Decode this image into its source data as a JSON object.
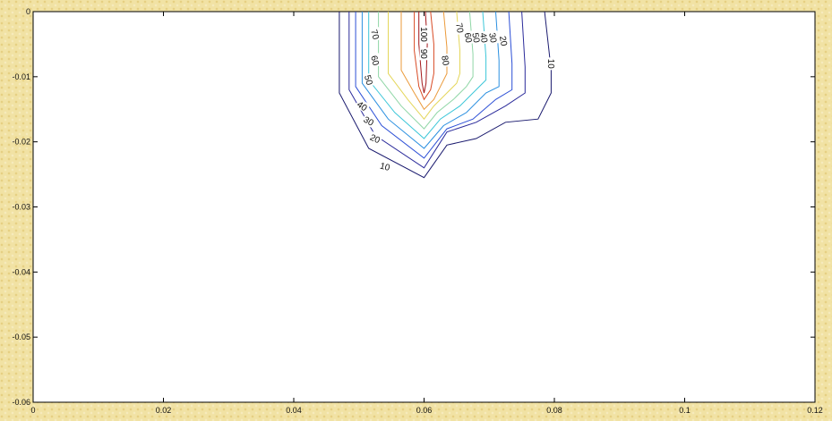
{
  "chart_data": {
    "type": "contour",
    "title": "",
    "xlabel": "",
    "ylabel": "",
    "xlim": [
      0,
      0.12
    ],
    "ylim": [
      -0.06,
      0
    ],
    "grid": false,
    "x_ticks": [
      {
        "value": 0,
        "label": "0"
      },
      {
        "value": 0.02,
        "label": "0.02"
      },
      {
        "value": 0.04,
        "label": "0.04"
      },
      {
        "value": 0.06,
        "label": "0.06"
      },
      {
        "value": 0.08,
        "label": "0.08"
      },
      {
        "value": 0.1,
        "label": "0.1"
      },
      {
        "value": 0.12,
        "label": "0.12"
      }
    ],
    "y_ticks": [
      {
        "value": 0,
        "label": "0"
      },
      {
        "value": -0.01,
        "label": "-0.01"
      },
      {
        "value": -0.02,
        "label": "-0.02"
      },
      {
        "value": -0.03,
        "label": "-0.03"
      },
      {
        "value": -0.04,
        "label": "-0.04"
      },
      {
        "value": -0.05,
        "label": "-0.05"
      },
      {
        "value": -0.06,
        "label": "-0.06"
      }
    ],
    "contours": [
      {
        "level": 10,
        "color": "#1a1a6e",
        "points": [
          [
            0.047,
            0
          ],
          [
            0.047,
            -0.0125
          ],
          [
            0.0515,
            -0.021
          ],
          [
            0.06,
            -0.0255
          ],
          [
            0.0635,
            -0.0205
          ],
          [
            0.068,
            -0.0195
          ],
          [
            0.0725,
            -0.017
          ],
          [
            0.0775,
            -0.0165
          ],
          [
            0.0795,
            -0.0125
          ],
          [
            0.0795,
            -0.009
          ],
          [
            0.0785,
            0
          ]
        ]
      },
      {
        "level": 20,
        "color": "#2a2a9a",
        "points": [
          [
            0.0485,
            0
          ],
          [
            0.0485,
            -0.012
          ],
          [
            0.0525,
            -0.019
          ],
          [
            0.06,
            -0.024
          ],
          [
            0.0635,
            -0.0185
          ],
          [
            0.068,
            -0.017
          ],
          [
            0.0725,
            -0.0145
          ],
          [
            0.0755,
            -0.0125
          ],
          [
            0.0755,
            -0.0085
          ],
          [
            0.075,
            0
          ]
        ]
      },
      {
        "level": 30,
        "color": "#2c4fd6",
        "points": [
          [
            0.0495,
            0
          ],
          [
            0.0495,
            -0.0115
          ],
          [
            0.0535,
            -0.0175
          ],
          [
            0.06,
            -0.0225
          ],
          [
            0.0635,
            -0.018
          ],
          [
            0.0675,
            -0.0165
          ],
          [
            0.071,
            -0.0135
          ],
          [
            0.0735,
            -0.012
          ],
          [
            0.0735,
            -0.008
          ],
          [
            0.073,
            0
          ]
        ]
      },
      {
        "level": 40,
        "color": "#2a8fe0",
        "points": [
          [
            0.0505,
            0
          ],
          [
            0.0505,
            -0.011
          ],
          [
            0.0545,
            -0.0165
          ],
          [
            0.06,
            -0.021
          ],
          [
            0.063,
            -0.0175
          ],
          [
            0.0665,
            -0.0155
          ],
          [
            0.0695,
            -0.0125
          ],
          [
            0.0715,
            -0.0115
          ],
          [
            0.0715,
            -0.0075
          ],
          [
            0.071,
            0
          ]
        ]
      },
      {
        "level": 50,
        "color": "#3cc6d8",
        "points": [
          [
            0.0515,
            0
          ],
          [
            0.0515,
            -0.0105
          ],
          [
            0.0555,
            -0.0155
          ],
          [
            0.06,
            -0.0195
          ],
          [
            0.0625,
            -0.0165
          ],
          [
            0.0655,
            -0.0145
          ],
          [
            0.068,
            -0.012
          ],
          [
            0.0695,
            -0.0105
          ],
          [
            0.0695,
            -0.007
          ],
          [
            0.069,
            0
          ]
        ]
      },
      {
        "level": 60,
        "color": "#8fd6a6",
        "points": [
          [
            0.053,
            0
          ],
          [
            0.053,
            -0.01
          ],
          [
            0.0565,
            -0.0145
          ],
          [
            0.06,
            -0.018
          ],
          [
            0.062,
            -0.0155
          ],
          [
            0.0645,
            -0.0135
          ],
          [
            0.0665,
            -0.0115
          ],
          [
            0.0675,
            -0.01
          ],
          [
            0.0675,
            -0.0065
          ],
          [
            0.067,
            0
          ]
        ]
      },
      {
        "level": 70,
        "color": "#e4d65a",
        "points": [
          [
            0.0545,
            0
          ],
          [
            0.0545,
            -0.0095
          ],
          [
            0.0575,
            -0.0135
          ],
          [
            0.06,
            -0.0165
          ],
          [
            0.0615,
            -0.0145
          ],
          [
            0.0635,
            -0.0125
          ],
          [
            0.065,
            -0.011
          ],
          [
            0.0655,
            -0.0095
          ],
          [
            0.0655,
            -0.006
          ],
          [
            0.065,
            0
          ]
        ]
      },
      {
        "level": 80,
        "color": "#eb9a3a",
        "points": [
          [
            0.0565,
            0
          ],
          [
            0.0565,
            -0.009
          ],
          [
            0.0585,
            -0.0125
          ],
          [
            0.06,
            -0.015
          ],
          [
            0.0615,
            -0.0135
          ],
          [
            0.0625,
            -0.0115
          ],
          [
            0.0635,
            -0.0095
          ],
          [
            0.0635,
            -0.0055
          ],
          [
            0.063,
            0
          ]
        ]
      },
      {
        "level": 90,
        "color": "#d84a24",
        "points": [
          [
            0.0585,
            0
          ],
          [
            0.0585,
            -0.006
          ],
          [
            0.0592,
            -0.0115
          ],
          [
            0.06,
            -0.0135
          ],
          [
            0.061,
            -0.012
          ],
          [
            0.0615,
            -0.0095
          ],
          [
            0.0615,
            -0.005
          ],
          [
            0.061,
            0
          ]
        ]
      },
      {
        "level": 100,
        "color": "#a3171a",
        "points": [
          [
            0.0592,
            0
          ],
          [
            0.0592,
            -0.005
          ],
          [
            0.0597,
            -0.011
          ],
          [
            0.06,
            -0.0125
          ],
          [
            0.0603,
            -0.011
          ],
          [
            0.0605,
            -0.005
          ],
          [
            0.0602,
            0
          ]
        ]
      }
    ],
    "contour_labels": [
      {
        "text": "100",
        "x": 0.06,
        "y": -0.0035,
        "rotation": 90
      },
      {
        "text": "90",
        "x": 0.06,
        "y": -0.0065,
        "rotation": 90
      },
      {
        "text": "80",
        "x": 0.0633,
        "y": -0.0075,
        "rotation": 80
      },
      {
        "text": "70",
        "x": 0.0525,
        "y": -0.0035,
        "rotation": 75
      },
      {
        "text": "60",
        "x": 0.0525,
        "y": -0.0075,
        "rotation": 75
      },
      {
        "text": "50",
        "x": 0.0515,
        "y": -0.0105,
        "rotation": 75
      },
      {
        "text": "40",
        "x": 0.0505,
        "y": -0.0145,
        "rotation": 35
      },
      {
        "text": "30",
        "x": 0.0515,
        "y": -0.0168,
        "rotation": 30
      },
      {
        "text": "20",
        "x": 0.0525,
        "y": -0.0195,
        "rotation": 25
      },
      {
        "text": "10",
        "x": 0.054,
        "y": -0.0238,
        "rotation": 15
      },
      {
        "text": "70",
        "x": 0.0655,
        "y": -0.0025,
        "rotation": 80
      },
      {
        "text": "60",
        "x": 0.0668,
        "y": -0.004,
        "rotation": 80
      },
      {
        "text": "50",
        "x": 0.068,
        "y": -0.004,
        "rotation": 80
      },
      {
        "text": "40",
        "x": 0.0692,
        "y": -0.004,
        "rotation": 80
      },
      {
        "text": "30",
        "x": 0.0706,
        "y": -0.004,
        "rotation": 80
      },
      {
        "text": "20",
        "x": 0.0722,
        "y": -0.0045,
        "rotation": 80
      },
      {
        "text": "10",
        "x": 0.0795,
        "y": -0.008,
        "rotation": 90
      }
    ]
  }
}
